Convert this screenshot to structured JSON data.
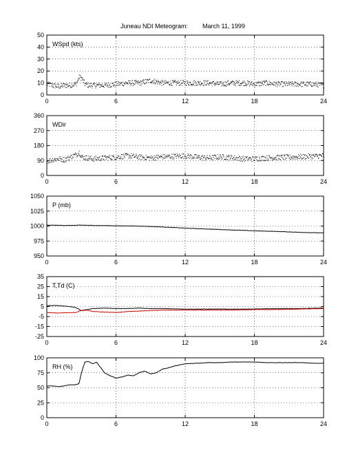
{
  "figure": {
    "title": "Juneau NDI Meteogram:",
    "date": "March 11, 1999"
  },
  "chart_data": [
    {
      "type": "scatter",
      "label": "WSpd (kts)",
      "x_ticks": [
        "0",
        "6",
        "12",
        "18",
        "24"
      ],
      "y_ticks": [
        "0",
        "10",
        "20",
        "30",
        "40",
        "50"
      ],
      "xlim": [
        0,
        24
      ],
      "ylim": [
        0,
        50
      ],
      "grid": true,
      "series": [
        {
          "color": "#000000",
          "x": [
            0,
            0.5,
            1,
            1.5,
            2,
            2.5,
            2.8,
            3,
            3.3,
            3.6,
            4,
            5,
            6,
            7,
            8,
            9,
            9.5,
            10,
            11,
            12,
            13,
            14,
            15,
            16,
            17,
            18,
            19,
            20,
            21,
            22,
            23,
            24
          ],
          "y": [
            9,
            8,
            7,
            8,
            8,
            9,
            15,
            14,
            9,
            8,
            8,
            8,
            9,
            10,
            10,
            12,
            11,
            10,
            10,
            10,
            10,
            10,
            9,
            10,
            10,
            9,
            10,
            9,
            9,
            9,
            9,
            8
          ]
        }
      ]
    },
    {
      "type": "scatter",
      "label": "WDir",
      "x_ticks": [
        "0",
        "6",
        "12",
        "18",
        "24"
      ],
      "y_ticks": [
        "0",
        "90",
        "180",
        "270",
        "360"
      ],
      "xlim": [
        0,
        24
      ],
      "ylim": [
        0,
        360
      ],
      "grid": true,
      "series": [
        {
          "color": "#000000",
          "x": [
            0,
            0.5,
            1,
            1.5,
            2,
            2.5,
            2.8,
            3,
            4,
            5,
            6,
            7,
            8,
            9,
            10,
            11,
            12,
            13,
            14,
            15,
            16,
            17,
            18,
            19,
            20,
            21,
            22,
            23,
            24
          ],
          "y": [
            85,
            95,
            100,
            95,
            110,
            125,
            140,
            110,
            100,
            105,
            110,
            118,
            110,
            105,
            112,
            115,
            118,
            110,
            105,
            112,
            108,
            100,
            100,
            105,
            108,
            110,
            112,
            115,
            120
          ]
        }
      ]
    },
    {
      "type": "line",
      "label": "P (mb)",
      "x_ticks": [
        "0",
        "6",
        "12",
        "18",
        "24"
      ],
      "y_ticks": [
        "950",
        "975",
        "1000",
        "1025",
        "1050"
      ],
      "xlim": [
        0,
        24
      ],
      "ylim": [
        950,
        1050
      ],
      "grid": true,
      "series": [
        {
          "color": "#000000",
          "x": [
            0,
            2,
            3,
            4,
            6,
            8,
            10,
            12,
            14,
            16,
            18,
            20,
            22,
            24
          ],
          "y": [
            1001.5,
            1001,
            1001.5,
            1001,
            1000.5,
            1000,
            998.5,
            996.5,
            995,
            993.5,
            992,
            991,
            989.5,
            988.5
          ]
        }
      ]
    },
    {
      "type": "line",
      "label": "T,Td (C)",
      "x_ticks": [
        "0",
        "6",
        "12",
        "18",
        "24"
      ],
      "y_ticks": [
        "-25",
        "-15",
        "-5",
        "5",
        "15",
        "25",
        "35"
      ],
      "xlim": [
        0,
        24
      ],
      "ylim": [
        -25,
        35
      ],
      "grid": true,
      "series": [
        {
          "color": "#000000",
          "x": [
            0,
            1,
            2,
            2.5,
            3,
            3.5,
            4,
            5,
            6,
            7,
            8,
            9,
            10,
            12,
            14,
            16,
            18,
            20,
            22,
            24
          ],
          "y": [
            6,
            6,
            5,
            4,
            1,
            2,
            3,
            3.5,
            3,
            3,
            3.5,
            3,
            3,
            2.5,
            2.5,
            2.5,
            2.5,
            3,
            3,
            3.5
          ]
        },
        {
          "color": "#cc0000",
          "x": [
            0,
            1,
            2,
            2.5,
            3,
            3.5,
            4,
            5,
            6,
            7,
            8,
            9,
            10,
            12,
            14,
            16,
            18,
            20,
            22,
            24
          ],
          "y": [
            -1,
            -1.5,
            -1,
            -1,
            1,
            1.5,
            0,
            -0.5,
            -1,
            0,
            0.5,
            1,
            1.5,
            1.5,
            1.5,
            1.5,
            2,
            2,
            2.5,
            3
          ]
        }
      ]
    },
    {
      "type": "line",
      "label": "RH (%)",
      "x_ticks": [
        "0",
        "6",
        "12",
        "18",
        "24"
      ],
      "y_ticks": [
        "0",
        "25",
        "50",
        "75",
        "100"
      ],
      "xlim": [
        0,
        24
      ],
      "ylim": [
        0,
        100
      ],
      "grid": true,
      "series": [
        {
          "color": "#000000",
          "x": [
            0,
            0.5,
            1,
            1.5,
            2,
            2.5,
            2.8,
            3,
            3.3,
            3.6,
            4,
            4.3,
            4.7,
            5,
            5.5,
            6,
            6.5,
            7,
            7.5,
            8,
            8.5,
            9,
            9.5,
            10,
            10.5,
            11,
            12,
            13,
            14,
            15,
            16,
            17,
            18,
            19,
            20,
            21,
            22,
            23,
            24
          ],
          "y": [
            53,
            53,
            52,
            53,
            55,
            55,
            57,
            75,
            93,
            94,
            90,
            93,
            83,
            75,
            70,
            66,
            68,
            71,
            70,
            75,
            78,
            73,
            75,
            81,
            83,
            86,
            90,
            91,
            92,
            92,
            93,
            93,
            93,
            92,
            92,
            92,
            92,
            91,
            91
          ]
        }
      ]
    }
  ]
}
